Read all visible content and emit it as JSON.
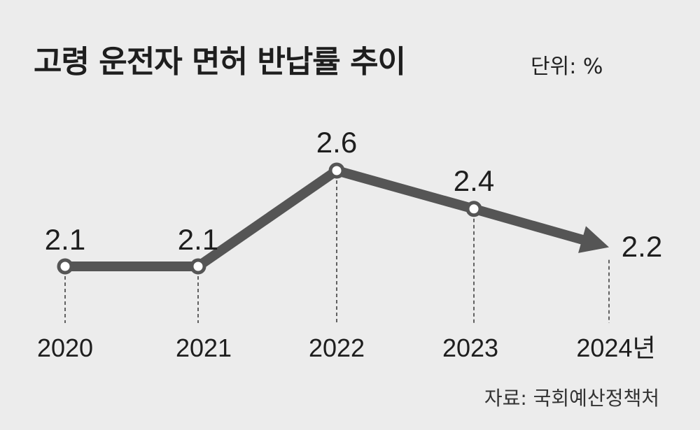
{
  "chart_data": {
    "type": "line",
    "title": "고령 운전자 면허 반납률 추이",
    "unit_label": "단위: %",
    "source": "자료: 국회예산정책처",
    "categories": [
      "2020",
      "2021",
      "2022",
      "2023",
      "2024년"
    ],
    "values": [
      2.1,
      2.1,
      2.6,
      2.4,
      2.2
    ],
    "value_labels": [
      "2.1",
      "2.1",
      "2.6",
      "2.4",
      "2.2"
    ],
    "xlabel": "",
    "ylabel": "",
    "grid": false,
    "colors": {
      "line": "#555555",
      "marker_fill": "#ffffff",
      "background": "#ececec"
    }
  }
}
